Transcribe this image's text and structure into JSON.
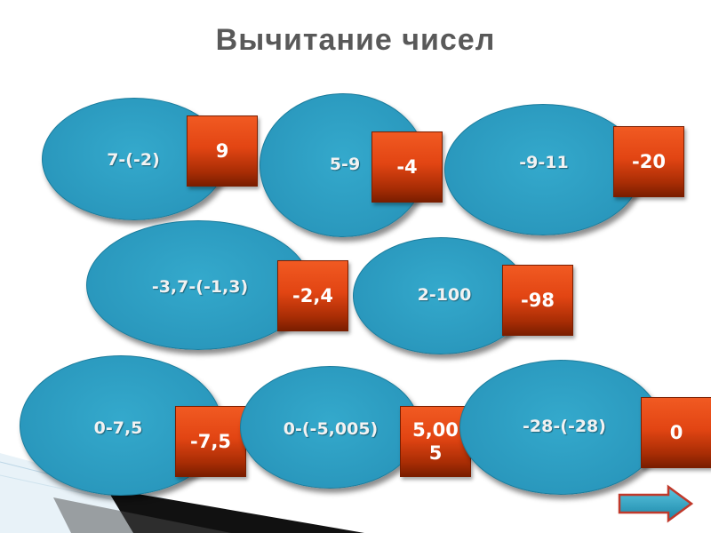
{
  "title": "Вычитание чисел",
  "items": [
    {
      "expression": "7-(-2)",
      "answer": "9"
    },
    {
      "expression": "5-9",
      "answer": "-4"
    },
    {
      "expression": "-9-11",
      "answer": "-20"
    },
    {
      "expression": "-3,7-(-1,3)",
      "answer": "-2,4"
    },
    {
      "expression": "2-100",
      "answer": "-98"
    },
    {
      "expression": "0-7,5",
      "answer": "-7,5"
    },
    {
      "expression": "0-(-5,005)",
      "answer": "5,005"
    },
    {
      "expression": "-28-(-28)",
      "answer": "0"
    }
  ]
}
